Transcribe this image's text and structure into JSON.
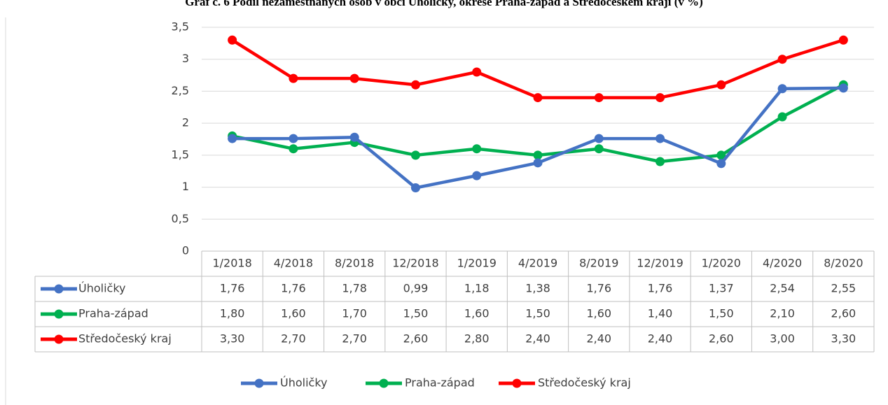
{
  "chart_data": {
    "type": "line",
    "title": "Graf č. 6 Podíl nezaměstnaných osob v obci Úholičky, okrese Praha-západ a Středočeském kraji (v %)",
    "categories": [
      "1/2018",
      "4/2018",
      "8/2018",
      "12/2018",
      "1/2019",
      "4/2019",
      "8/2019",
      "12/2019",
      "1/2020",
      "4/2020",
      "8/2020"
    ],
    "series": [
      {
        "name": "Úholičky",
        "color": "#4472c4",
        "values": [
          1.76,
          1.76,
          1.78,
          0.99,
          1.18,
          1.38,
          1.76,
          1.76,
          1.37,
          2.54,
          2.55
        ],
        "value_labels": [
          "1,76",
          "1,76",
          "1,78",
          "0,99",
          "1,18",
          "1,38",
          "1,76",
          "1,76",
          "1,37",
          "2,54",
          "2,55"
        ]
      },
      {
        "name": "Praha-západ",
        "color": "#00b050",
        "values": [
          1.8,
          1.6,
          1.7,
          1.5,
          1.6,
          1.5,
          1.6,
          1.4,
          1.5,
          2.1,
          2.6
        ],
        "value_labels": [
          "1,80",
          "1,60",
          "1,70",
          "1,50",
          "1,60",
          "1,50",
          "1,60",
          "1,40",
          "1,50",
          "2,10",
          "2,60"
        ]
      },
      {
        "name": "Středočeský kraj",
        "color": "#ff0000",
        "values": [
          3.3,
          2.7,
          2.7,
          2.6,
          2.8,
          2.4,
          2.4,
          2.4,
          2.6,
          3.0,
          3.3
        ],
        "value_labels": [
          "3,30",
          "2,70",
          "2,70",
          "2,60",
          "2,80",
          "2,40",
          "2,40",
          "2,40",
          "2,60",
          "3,00",
          "3,30"
        ]
      }
    ],
    "ylim": [
      0,
      3.5
    ],
    "yticks": [
      0,
      {
        "value": 0.5,
        "label": "0,5"
      },
      1,
      {
        "value": 1.5,
        "label": "1,5"
      },
      2,
      {
        "value": 2.5,
        "label": "2,5"
      },
      3,
      {
        "value": 3.5,
        "label": "3,5"
      }
    ],
    "grid": true
  }
}
